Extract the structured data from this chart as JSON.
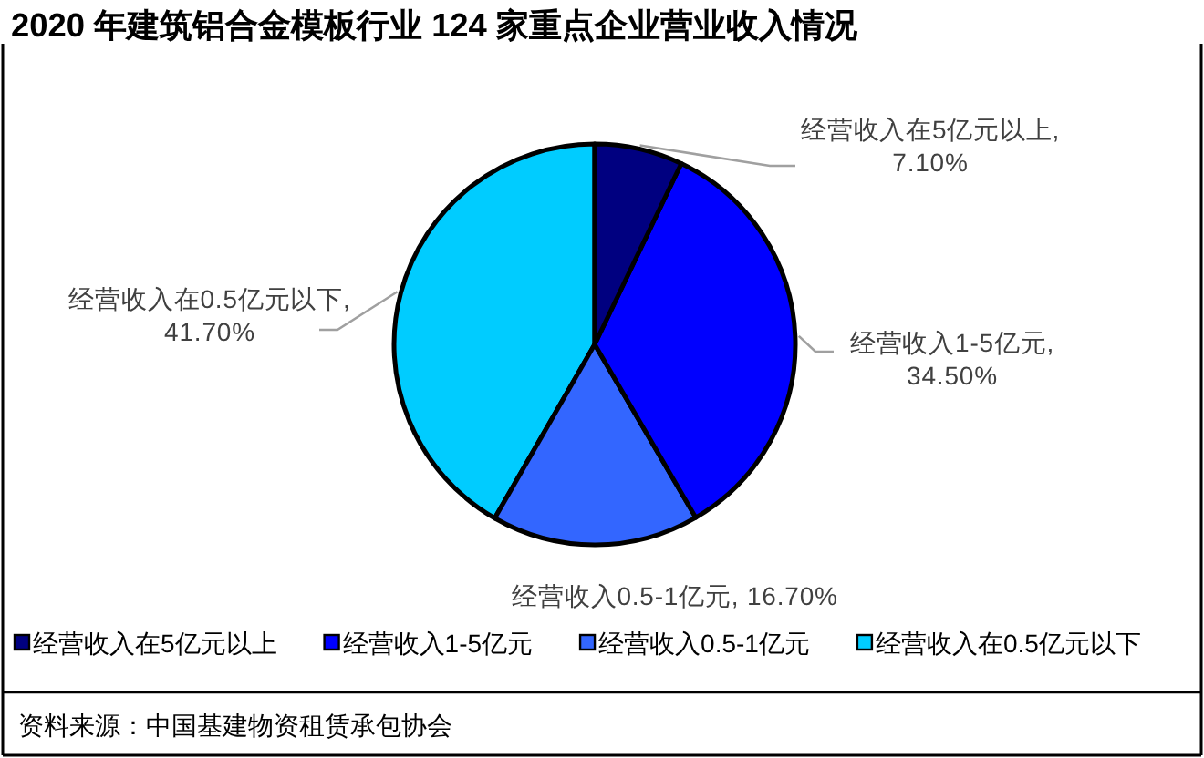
{
  "chart_data": {
    "type": "pie",
    "title": "2020 年建筑铝合金模板行业 124 家重点企业营业收入情况",
    "categories": [
      "经营收入在5亿元以上",
      "经营收入1-5亿元",
      "经营收入0.5-1亿元",
      "经营收入在0.5亿元以下"
    ],
    "values": [
      7.1,
      34.5,
      16.7,
      41.7
    ],
    "value_labels": [
      "经营收入在5亿元以上, 7.10%",
      "经营收入1-5亿元, 34.50%",
      "经营收入0.5-1亿元, 16.70%",
      "经营收入在0.5亿元以下, 41.70%"
    ],
    "colors": [
      "#000080",
      "#0000ff",
      "#3366ff",
      "#00ccff"
    ],
    "legend": "bottom",
    "annotations": [
      "资料来源：中国基建物资租赁承包协会"
    ]
  }
}
